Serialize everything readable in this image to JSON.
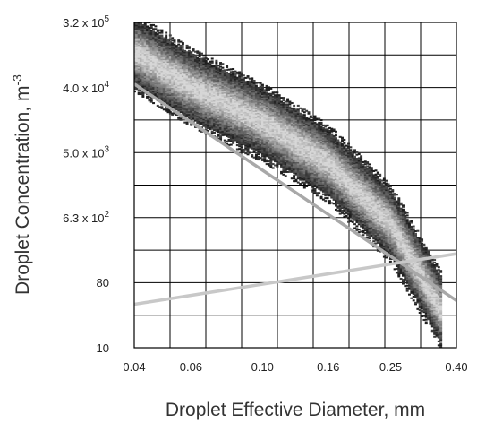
{
  "chart_data": {
    "type": "heatmap",
    "xlabel": "Droplet Effective Diameter, mm",
    "ylabel": "Droplet Concentration, m",
    "ylabel_exponent": "-3",
    "x_scale": "log",
    "y_scale": "log",
    "xlim": [
      0.04,
      0.4
    ],
    "ylim": [
      10,
      320000
    ],
    "x_ticks": [
      {
        "value": 0.04,
        "label": "0.04"
      },
      {
        "value": 0.06,
        "label": "0.06"
      },
      {
        "value": 0.1,
        "label": "0.10"
      },
      {
        "value": 0.16,
        "label": "0.16"
      },
      {
        "value": 0.25,
        "label": "0.25"
      },
      {
        "value": 0.4,
        "label": "0.40"
      }
    ],
    "y_ticks": [
      {
        "value": 320000,
        "mantissa": "3.2 x 10",
        "exp": "5"
      },
      {
        "value": 40000,
        "mantissa": "4.0 x 10",
        "exp": "4"
      },
      {
        "value": 5000,
        "mantissa": "5.0 x 10",
        "exp": "3"
      },
      {
        "value": 630,
        "mantissa": "6.3 x 10",
        "exp": "2"
      },
      {
        "value": 80,
        "mantissa": "80",
        "exp": ""
      },
      {
        "value": 10,
        "mantissa": "10",
        "exp": ""
      }
    ],
    "grid": true,
    "density_band": {
      "centerline": [
        [
          0.038,
          140000
        ],
        [
          0.06,
          40000
        ],
        [
          0.1,
          13000
        ],
        [
          0.16,
          3500
        ],
        [
          0.25,
          500
        ],
        [
          0.36,
          30
        ]
      ],
      "half_width_decades": 0.55,
      "colormap": "grayscale, denser = lighter"
    },
    "fit_lines": [
      {
        "points": [
          [
            0.04,
            45000
          ],
          [
            0.4,
            45
          ]
        ],
        "color": "#a8a8a8"
      },
      {
        "points": [
          [
            0.04,
            40
          ],
          [
            0.4,
            200
          ]
        ],
        "color": "#c8c8c8"
      }
    ]
  }
}
